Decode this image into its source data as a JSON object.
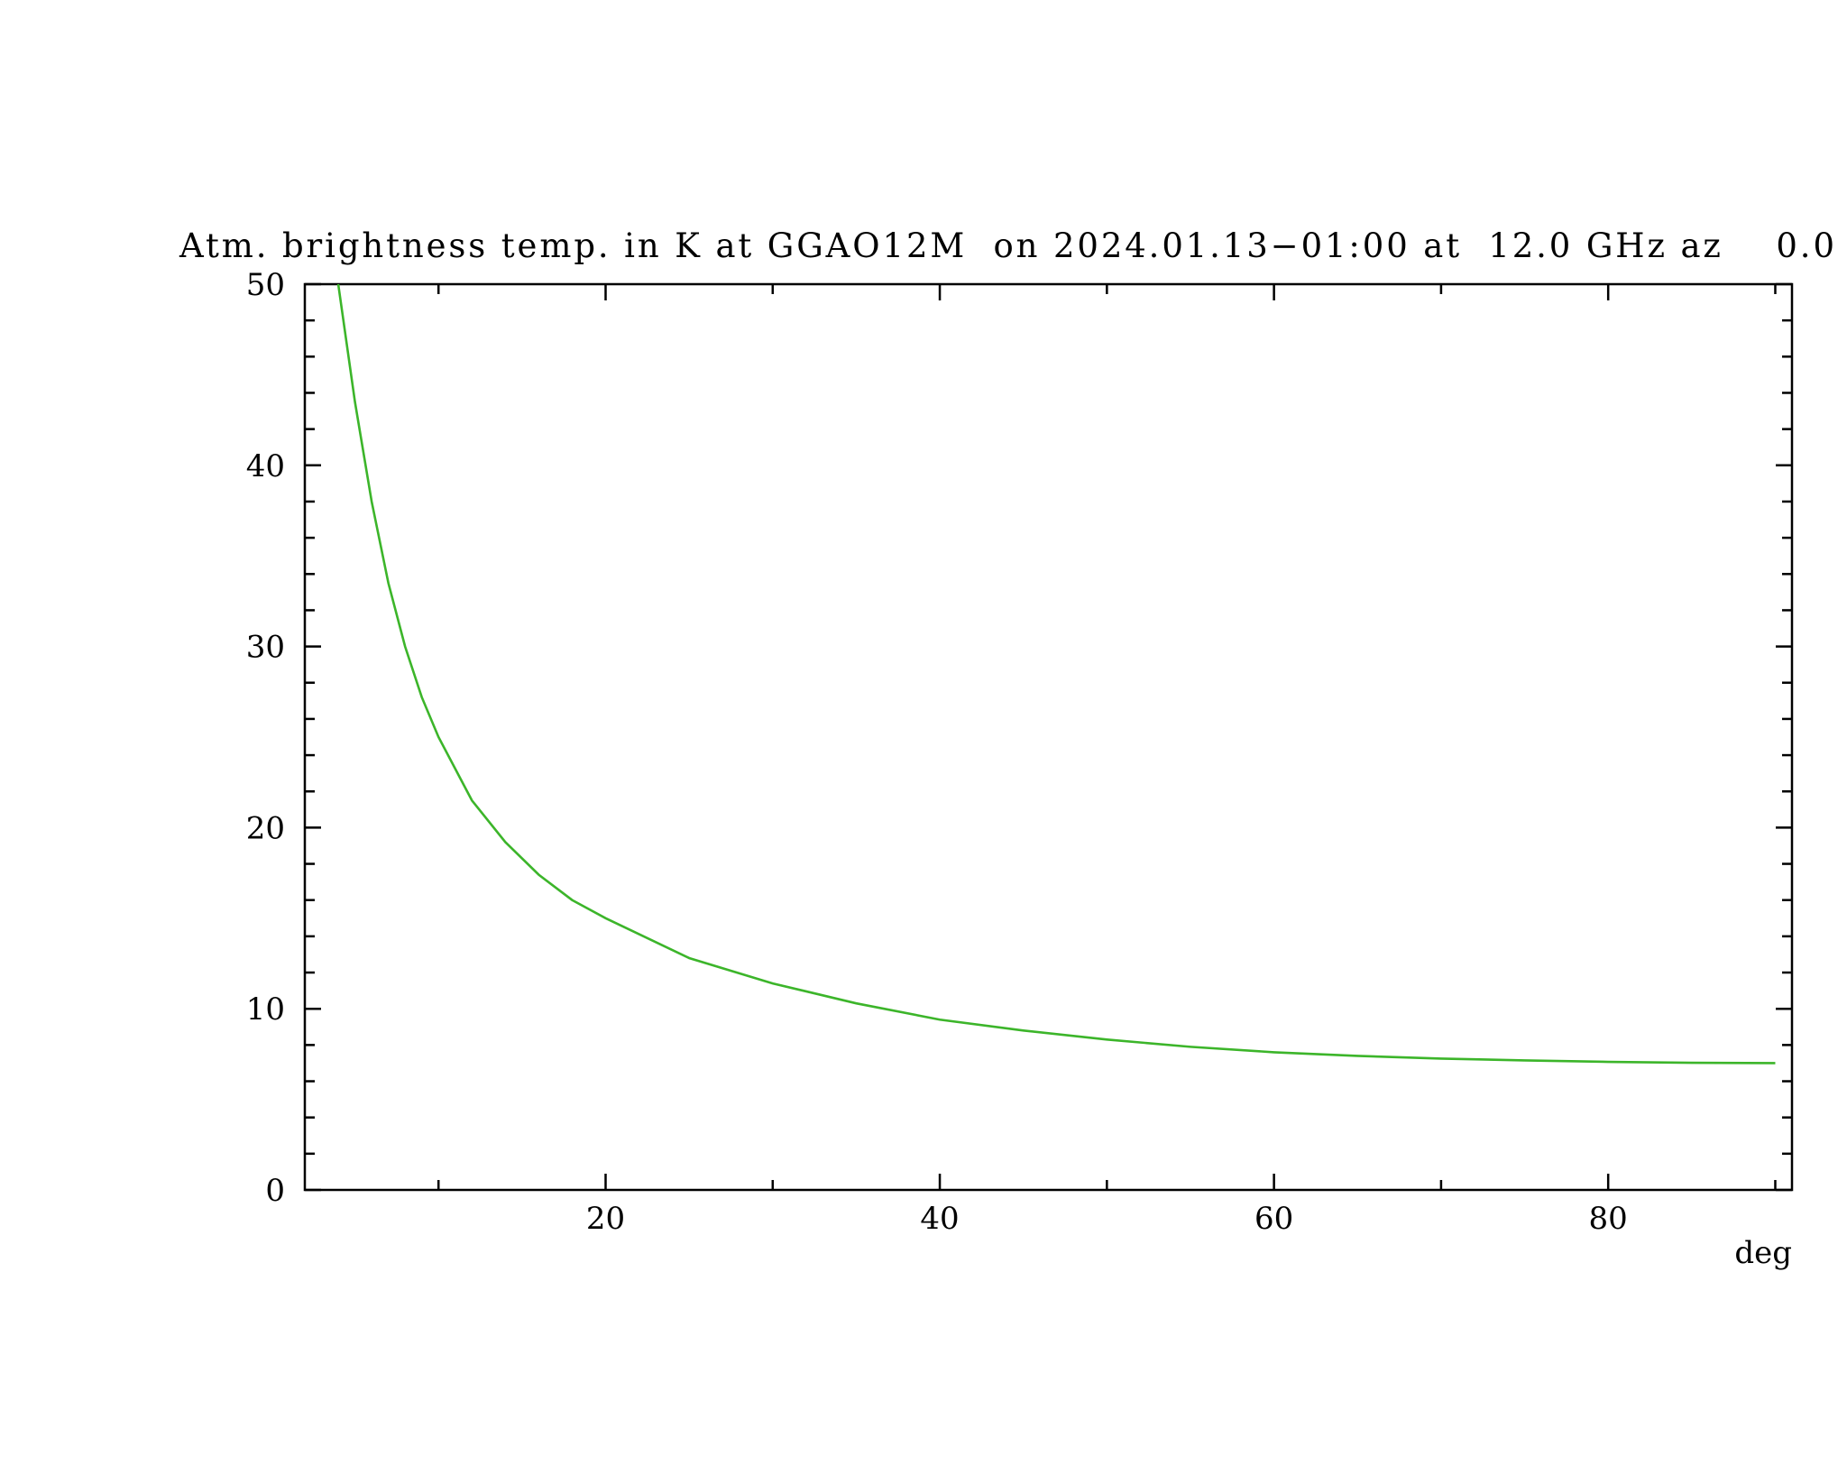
{
  "chart_data": {
    "type": "line",
    "title": "Atm. brightness temp. in K at GGAO12M  on 2024.01.13−01:00 at  12.0 GHz az    0.0",
    "x_label": "deg",
    "x": [
      4,
      5,
      6,
      7,
      8,
      9,
      10,
      12,
      14,
      16,
      18,
      20,
      25,
      30,
      35,
      40,
      45,
      50,
      55,
      60,
      65,
      70,
      75,
      80,
      85,
      90
    ],
    "series": [
      {
        "color": "#3cb52a",
        "values": [
          50,
          43.5,
          38,
          33.5,
          30,
          27.2,
          25,
          21.5,
          19.2,
          17.4,
          16,
          15,
          12.8,
          11.4,
          10.3,
          9.4,
          8.8,
          8.3,
          7.9,
          7.6,
          7.4,
          7.25,
          7.15,
          7.07,
          7.02,
          7
        ]
      }
    ],
    "xlim": [
      2,
      91
    ],
    "ylim": [
      0,
      50
    ],
    "xticks": [
      {
        "value": 10,
        "label": null
      },
      20,
      {
        "value": 30,
        "label": null
      },
      40,
      {
        "value": 50,
        "label": null
      },
      60,
      {
        "value": 70,
        "label": null
      },
      80,
      {
        "value": 90,
        "label": null
      }
    ],
    "yticks": [
      0,
      {
        "value": 2,
        "label": null
      },
      {
        "value": 4,
        "label": null
      },
      {
        "value": 6,
        "label": null
      },
      {
        "value": 8,
        "label": null
      },
      10,
      {
        "value": 12,
        "label": null
      },
      {
        "value": 14,
        "label": null
      },
      {
        "value": 16,
        "label": null
      },
      {
        "value": 18,
        "label": null
      },
      20,
      {
        "value": 22,
        "label": null
      },
      {
        "value": 24,
        "label": null
      },
      {
        "value": 26,
        "label": null
      },
      {
        "value": 28,
        "label": null
      },
      30,
      {
        "value": 32,
        "label": null
      },
      {
        "value": 34,
        "label": null
      },
      {
        "value": 36,
        "label": null
      },
      {
        "value": 38,
        "label": null
      },
      40,
      {
        "value": 42,
        "label": null
      },
      {
        "value": 44,
        "label": null
      },
      {
        "value": 46,
        "label": null
      },
      {
        "value": 48,
        "label": null
      },
      50
    ],
    "grid": false
  }
}
